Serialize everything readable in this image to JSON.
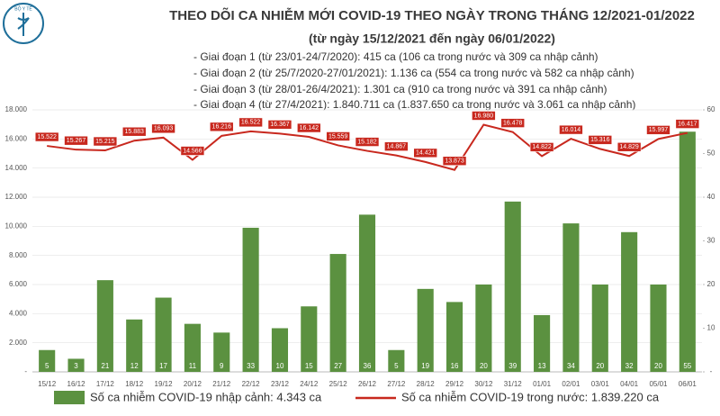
{
  "chart_data": {
    "type": "bar",
    "logo_text": "BỘ Y TẾ",
    "title": "THEO DÕI CA NHIỄM MỚI COVID-19 THEO NGÀY TRONG THÁNG 12/2021-01/2022",
    "subtitle": "(từ ngày 15/12/2021 đến ngày 06/01/2022)",
    "annotations": [
      "- Giai đoạn 1 (từ 23/01-24/7/2020): 415 ca (106 ca trong nước và 309 ca nhập cảnh)",
      "- Giai đoạn 2 (từ 25/7/2020-27/01/2021): 1.136 ca (554 ca trong nước và 582 ca nhập cảnh)",
      "- Giai đoạn 3 (từ 28/01-26/4/2021): 1.301 ca (910 ca trong nước và 391 ca nhập cảnh)",
      "- Giai đoạn 4 (từ 27/4/2021): 1.840.711 ca (1.837.650 ca trong nước và 3.061 ca nhập cảnh)"
    ],
    "categories": [
      "15/12",
      "16/12",
      "17/12",
      "18/12",
      "19/12",
      "20/12",
      "21/12",
      "22/12",
      "23/12",
      "24/12",
      "25/12",
      "26/12",
      "27/12",
      "28/12",
      "29/12",
      "30/12",
      "31/12",
      "01/01",
      "02/01",
      "03/01",
      "04/01",
      "05/01",
      "06/01"
    ],
    "series": [
      {
        "name": "Số ca nhiễm COVID-19 nhập cảnh: 4.343 ca",
        "type": "bar",
        "axis": "y2",
        "color": "#5b9140",
        "values": [
          5,
          3,
          21,
          12,
          17,
          11,
          9,
          33,
          10,
          15,
          27,
          36,
          5,
          19,
          16,
          20,
          39,
          13,
          34,
          20,
          32,
          20,
          55
        ]
      },
      {
        "name": "Số ca nhiễm COVID-19 trong nước: 1.839.220 ca",
        "type": "line",
        "color": "#c8281e",
        "values": [
          15522,
          15267,
          15215,
          15883,
          16093,
          14566,
          16216,
          16522,
          16367,
          16142,
          15559,
          15182,
          14867,
          14421,
          13873,
          16980,
          16478,
          14822,
          16014,
          15316,
          14829,
          15997,
          16417
        ],
        "value_labels": [
          "15.522",
          "15.267",
          "15.215",
          "15.883",
          "16.093",
          "14.566",
          "16.216",
          "16.522",
          "16.367",
          "16.142",
          "15.559",
          "15.182",
          "14.867",
          "14.421",
          "13.873",
          "16.980",
          "16.478",
          "14.822",
          "16.014",
          "15.316",
          "14.829",
          "15.997",
          "16.417"
        ]
      }
    ],
    "ylim": [
      0,
      18000
    ],
    "yticks": [
      {
        "value": 0,
        "label": "-"
      },
      {
        "value": 2000,
        "label": "2.000"
      },
      {
        "value": 4000,
        "label": "4.000"
      },
      {
        "value": 6000,
        "label": "6.000"
      },
      {
        "value": 8000,
        "label": "8.000"
      },
      {
        "value": 10000,
        "label": "10.000"
      },
      {
        "value": 12000,
        "label": "12.000"
      },
      {
        "value": 14000,
        "label": "14.000"
      },
      {
        "value": 16000,
        "label": "16.000"
      },
      {
        "value": 18000,
        "label": "18.000"
      }
    ],
    "y2lim": [
      0,
      60
    ],
    "y2ticks": [
      {
        "value": 0,
        "label": "-"
      },
      10,
      20,
      30,
      40,
      50,
      60
    ],
    "grid": true
  }
}
